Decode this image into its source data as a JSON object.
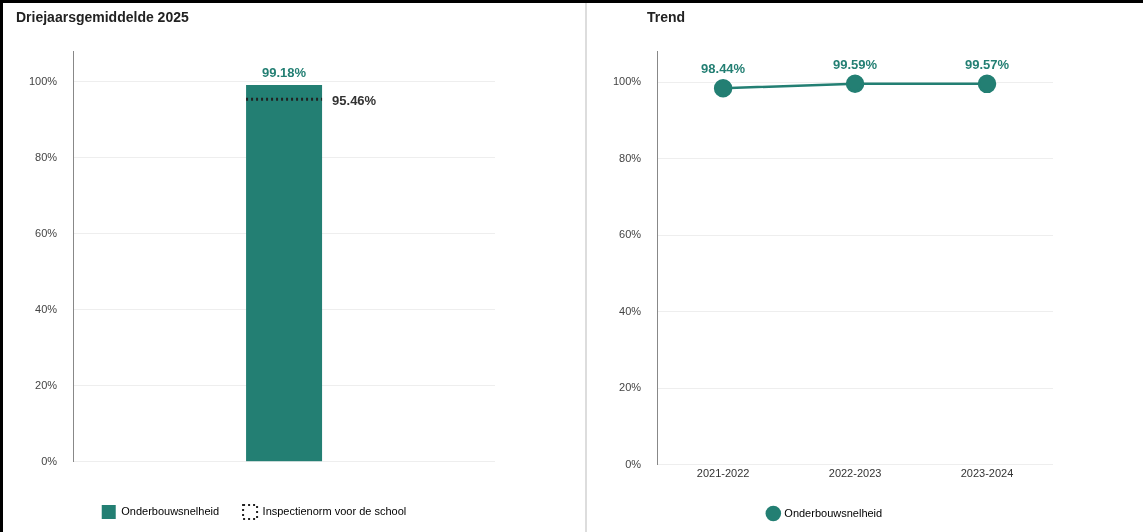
{
  "chart_data": [
    {
      "type": "bar",
      "title": "Driejaarsgemiddelde 2025",
      "categories": [
        null
      ],
      "series": [
        {
          "name": "Onderbouwsnelheid",
          "color": "#237f73",
          "values": [
            99.18
          ],
          "value_labels": [
            "99.18%"
          ]
        }
      ],
      "ylim": [
        0,
        108
      ],
      "yticks": [
        {
          "value": 0,
          "label": "0%"
        },
        {
          "value": 20,
          "label": "20%"
        },
        {
          "value": 40,
          "label": "40%"
        },
        {
          "value": 60,
          "label": "60%"
        },
        {
          "value": 80,
          "label": "80%"
        },
        {
          "value": 100,
          "label": "100%"
        }
      ],
      "ref_lines": [
        {
          "axis": "y",
          "value": 95.46,
          "label": "Inspectienorm voor de school",
          "color": "#222222",
          "line_style": "dotted"
        }
      ],
      "annotations": [
        "95.46%"
      ],
      "grid": "y",
      "legend": "bottom"
    },
    {
      "type": "line",
      "title": "Trend",
      "categories": [
        "2021-2022",
        "2022-2023",
        "2023-2024"
      ],
      "series": [
        {
          "name": "Onderbouwsnelheid",
          "color": "#237f73",
          "values": [
            98.44,
            99.59,
            99.57
          ],
          "value_labels": [
            "98.44%",
            "99.59%",
            "99.57%"
          ]
        }
      ],
      "ylim": [
        0,
        108
      ],
      "yticks": [
        {
          "value": 0,
          "label": "0%"
        },
        {
          "value": 20,
          "label": "20%"
        },
        {
          "value": 40,
          "label": "40%"
        },
        {
          "value": 60,
          "label": "60%"
        },
        {
          "value": 80,
          "label": "80%"
        },
        {
          "value": 100,
          "label": "100%"
        }
      ],
      "grid": "y",
      "legend": "bottom",
      "marker": "circle",
      "line_style": "solid"
    }
  ]
}
